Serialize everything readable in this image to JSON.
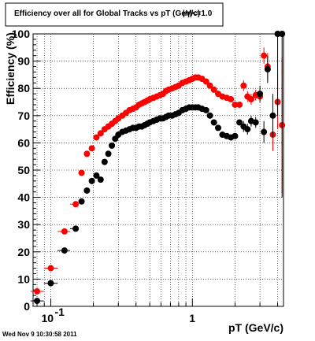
{
  "chart_data": {
    "type": "scatter",
    "title": "Efficiency over all for Global Tracks vs pT (GeV/c)",
    "title_overlay": "|η|<=1.0",
    "xlabel": "pT (GeV/c)",
    "ylabel": "Efficiency (%)",
    "xscale": "log",
    "xlim": [
      0.075,
      4.4
    ],
    "ylim": [
      0,
      100
    ],
    "x_tick_labels": [
      {
        "value": 0.1,
        "base": "10",
        "exp": "-1"
      },
      {
        "value": 1,
        "base": "1",
        "exp": ""
      }
    ],
    "y_ticks": [
      0,
      10,
      20,
      30,
      40,
      50,
      60,
      70,
      80,
      90,
      100
    ],
    "grid": true,
    "timestamp": "Wed Nov  9 10:30:58 2011",
    "series": [
      {
        "color": "#ff0000",
        "points": [
          [
            0.08,
            5.5
          ],
          [
            0.1,
            14
          ],
          [
            0.125,
            27.5
          ],
          [
            0.15,
            37.5
          ],
          [
            0.165,
            49
          ],
          [
            0.18,
            56
          ],
          [
            0.195,
            58
          ],
          [
            0.21,
            62
          ],
          [
            0.225,
            63.5
          ],
          [
            0.24,
            65
          ],
          [
            0.255,
            66
          ],
          [
            0.27,
            67
          ],
          [
            0.285,
            68
          ],
          [
            0.3,
            69
          ],
          [
            0.32,
            70
          ],
          [
            0.34,
            71
          ],
          [
            0.36,
            72
          ],
          [
            0.38,
            72.5
          ],
          [
            0.4,
            73
          ],
          [
            0.42,
            74
          ],
          [
            0.44,
            74.5
          ],
          [
            0.46,
            75
          ],
          [
            0.48,
            75.5
          ],
          [
            0.5,
            76
          ],
          [
            0.53,
            76.5
          ],
          [
            0.56,
            77
          ],
          [
            0.59,
            77.5
          ],
          [
            0.62,
            78
          ],
          [
            0.65,
            79
          ],
          [
            0.68,
            79.5
          ],
          [
            0.72,
            80
          ],
          [
            0.76,
            80.5
          ],
          [
            0.8,
            81
          ],
          [
            0.85,
            82
          ],
          [
            0.9,
            82.5
          ],
          [
            0.95,
            83
          ],
          [
            1.0,
            83.5
          ],
          [
            1.05,
            84
          ],
          [
            1.1,
            84
          ],
          [
            1.17,
            83.5
          ],
          [
            1.25,
            82.5
          ],
          [
            1.33,
            81
          ],
          [
            1.42,
            79.5
          ],
          [
            1.52,
            78
          ],
          [
            1.63,
            77
          ],
          [
            1.75,
            76.5
          ],
          [
            1.87,
            76
          ],
          [
            2.0,
            74
          ],
          [
            2.15,
            74
          ],
          [
            2.3,
            81
          ],
          [
            2.45,
            77
          ],
          [
            2.6,
            76
          ],
          [
            2.8,
            77.5
          ],
          [
            3.0,
            77
          ],
          [
            3.2,
            92
          ],
          [
            3.4,
            88
          ],
          [
            3.7,
            63
          ],
          [
            4.0,
            75
          ],
          [
            4.3,
            66.5
          ]
        ],
        "errors_y": [
          0,
          0,
          0,
          0,
          0,
          0,
          0,
          0,
          0,
          0,
          0,
          0,
          0,
          0,
          0,
          0,
          0,
          0,
          0,
          0,
          0,
          0,
          0,
          0,
          0,
          0,
          0,
          0,
          0,
          0,
          0,
          0,
          0,
          0,
          0,
          0,
          0,
          0,
          0,
          0,
          0,
          0,
          0,
          0,
          0,
          0,
          0,
          1,
          1,
          2,
          2,
          2,
          2,
          2,
          3,
          5,
          6,
          10,
          25
        ]
      },
      {
        "color": "#000000",
        "points": [
          [
            0.08,
            2
          ],
          [
            0.1,
            8.5
          ],
          [
            0.125,
            20.5
          ],
          [
            0.15,
            28.5
          ],
          [
            0.165,
            38.5
          ],
          [
            0.18,
            42.5
          ],
          [
            0.195,
            46
          ],
          [
            0.21,
            48
          ],
          [
            0.225,
            46.5
          ],
          [
            0.24,
            53
          ],
          [
            0.255,
            56
          ],
          [
            0.27,
            59
          ],
          [
            0.285,
            61.5
          ],
          [
            0.3,
            63
          ],
          [
            0.32,
            64
          ],
          [
            0.34,
            64.5
          ],
          [
            0.36,
            65
          ],
          [
            0.38,
            65.5
          ],
          [
            0.4,
            65.5
          ],
          [
            0.42,
            66
          ],
          [
            0.44,
            66
          ],
          [
            0.46,
            66.5
          ],
          [
            0.48,
            67
          ],
          [
            0.5,
            67.5
          ],
          [
            0.53,
            68
          ],
          [
            0.56,
            68.5
          ],
          [
            0.59,
            69
          ],
          [
            0.62,
            69
          ],
          [
            0.65,
            69.5
          ],
          [
            0.68,
            70
          ],
          [
            0.72,
            70
          ],
          [
            0.76,
            70.5
          ],
          [
            0.8,
            71
          ],
          [
            0.85,
            72
          ],
          [
            0.9,
            72.5
          ],
          [
            0.95,
            73
          ],
          [
            1.0,
            73
          ],
          [
            1.05,
            73
          ],
          [
            1.1,
            73
          ],
          [
            1.17,
            72.5
          ],
          [
            1.25,
            72
          ],
          [
            1.33,
            70
          ],
          [
            1.42,
            67.5
          ],
          [
            1.52,
            65.5
          ],
          [
            1.63,
            63
          ],
          [
            1.75,
            62.5
          ],
          [
            1.87,
            62
          ],
          [
            2.0,
            62.5
          ],
          [
            2.15,
            67.5
          ],
          [
            2.3,
            66
          ],
          [
            2.45,
            65
          ],
          [
            2.6,
            68
          ],
          [
            2.8,
            67.5
          ],
          [
            3.0,
            78
          ],
          [
            3.2,
            64
          ],
          [
            3.4,
            87
          ],
          [
            3.7,
            70
          ],
          [
            4.0,
            100
          ],
          [
            4.3,
            100
          ]
        ],
        "errors_y": [
          0,
          0,
          0,
          0,
          0,
          0,
          0,
          0,
          0,
          0,
          0,
          0,
          0,
          0,
          0,
          0,
          0,
          0,
          0,
          0,
          0,
          0,
          0,
          0,
          0,
          0,
          0,
          0,
          0,
          0,
          0,
          0,
          0,
          0,
          0,
          0,
          0,
          0,
          0,
          0,
          0,
          0,
          0,
          0,
          0,
          0,
          0,
          1,
          1,
          2,
          2,
          2,
          2,
          3,
          4,
          5,
          8,
          30,
          60
        ]
      }
    ]
  }
}
